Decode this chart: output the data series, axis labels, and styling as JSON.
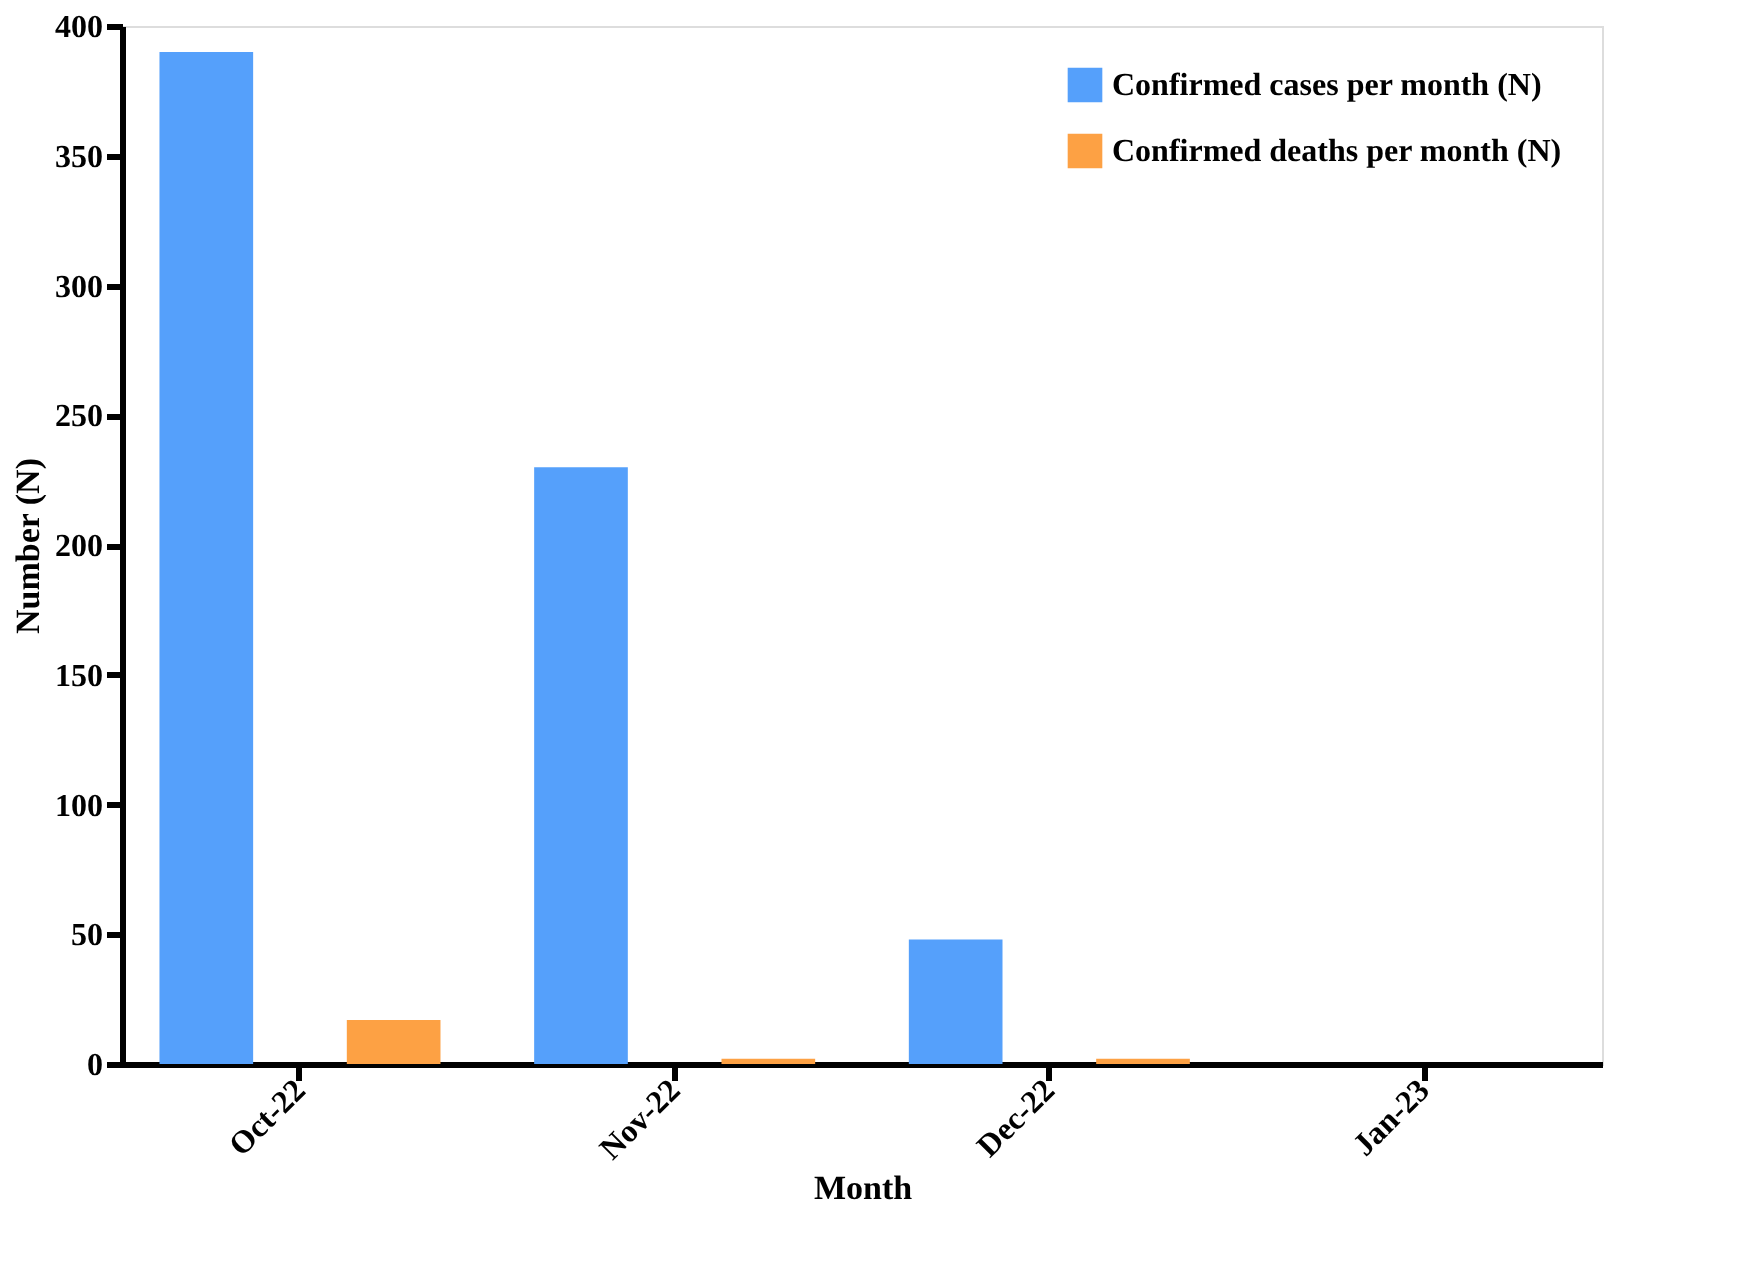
{
  "chart_data": {
    "type": "bar",
    "xlabel": "Month",
    "ylabel": "Number (N)",
    "categories": [
      "Oct-22",
      "Nov-22",
      "Dec-22",
      "Jan-23"
    ],
    "series": [
      {
        "name": "Confirmed cases per month (N)",
        "color": "#55a0fb",
        "values": [
          390,
          230,
          48,
          0
        ]
      },
      {
        "name": "Confirmed deaths per month (N)",
        "color": "#fda144",
        "values": [
          17,
          2,
          2,
          0
        ]
      }
    ],
    "ylim": [
      0,
      400
    ],
    "yticks": [
      0,
      50,
      100,
      150,
      200,
      250,
      300,
      350,
      400
    ],
    "grid": false,
    "legend": "top right"
  }
}
